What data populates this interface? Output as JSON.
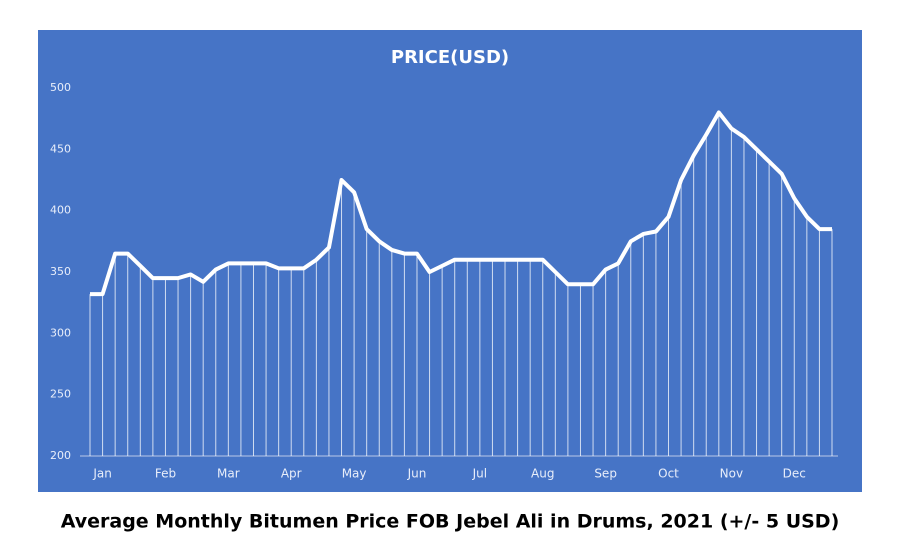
{
  "chart_data": {
    "type": "line",
    "title": "PRICE(USD)",
    "caption": "Average Monthly Bitumen Price FOB Jebel Ali in Drums, 2021 (+/- 5 USD)",
    "categories": [
      null,
      "Jan",
      null,
      null,
      null,
      null,
      "Feb",
      null,
      null,
      null,
      null,
      "Mar",
      null,
      null,
      null,
      null,
      "Apr",
      null,
      null,
      null,
      null,
      "May",
      null,
      null,
      null,
      null,
      "Jun",
      null,
      null,
      null,
      null,
      "Jul",
      null,
      null,
      null,
      null,
      "Aug",
      null,
      null,
      null,
      null,
      "Sep",
      null,
      null,
      null,
      null,
      "Oct",
      null,
      null,
      null,
      null,
      "Nov",
      null,
      null,
      null,
      null,
      "Dec",
      null,
      null,
      null
    ],
    "series": [
      {
        "name": "Price",
        "color": "#ffffff",
        "values": [
          332,
          332,
          365,
          365,
          355,
          345,
          345,
          345,
          348,
          342,
          352,
          357,
          357,
          357,
          357,
          353,
          353,
          353,
          360,
          370,
          425,
          415,
          385,
          375,
          368,
          365,
          365,
          350,
          355,
          360,
          360,
          360,
          360,
          360,
          360,
          360,
          360,
          350,
          340,
          340,
          340,
          352,
          357,
          375,
          381,
          383,
          395,
          425,
          445,
          462,
          480,
          467,
          460,
          450,
          440,
          430,
          410,
          395,
          385,
          385
        ]
      }
    ],
    "ylim": [
      200,
      500
    ],
    "yticks": [
      200,
      250,
      300,
      350,
      400,
      450,
      500
    ],
    "background": "#4674c6",
    "grid": false
  }
}
